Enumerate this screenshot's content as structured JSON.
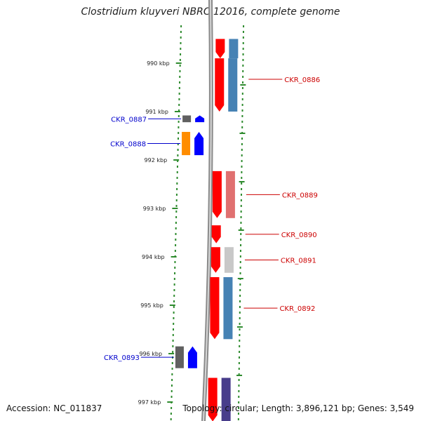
{
  "title": "Clostridium kluyveri NBRC 12016, complete genome",
  "footer": {
    "accession": "Accession: NC_011837",
    "summary": "Topology: circular; Length: 3,896,121 bp; Genes: 3,549"
  },
  "ticks": [
    {
      "label": "990 kbp",
      "kbp": 990
    },
    {
      "label": "991 kbp",
      "kbp": 991
    },
    {
      "label": "992 kbp",
      "kbp": 992
    },
    {
      "label": "993 kbp",
      "kbp": 993
    },
    {
      "label": "994 kbp",
      "kbp": 994
    },
    {
      "label": "995 kbp",
      "kbp": 995
    },
    {
      "label": "996 kbp",
      "kbp": 996
    },
    {
      "label": "997 kbp",
      "kbp": 997
    }
  ],
  "genes": [
    {
      "name": "",
      "strand": "+",
      "start_kbp": 989.5,
      "end_kbp": 989.9,
      "colors": [
        "#ff0000",
        "#4682b4"
      ],
      "labeled": false
    },
    {
      "name": "CKR_0886",
      "strand": "+",
      "start_kbp": 989.9,
      "end_kbp": 991.0,
      "colors": [
        "#ff0000",
        "#4682b4"
      ],
      "labeled": true,
      "label_color": "#cc0000"
    },
    {
      "name": "CKR_0887",
      "strand": "-",
      "start_kbp": 991.08,
      "end_kbp": 991.22,
      "colors": [
        "#606060",
        "#0000ff"
      ],
      "labeled": true,
      "label_color": "#0000cc"
    },
    {
      "name": "CKR_0888",
      "strand": "-",
      "start_kbp": 991.42,
      "end_kbp": 991.9,
      "colors": [
        "#ff8c00",
        "#0000ff"
      ],
      "labeled": true,
      "label_color": "#0000cc"
    },
    {
      "name": "CKR_0889",
      "strand": "+",
      "start_kbp": 992.23,
      "end_kbp": 993.2,
      "colors": [
        "#ff0000",
        "#e07070"
      ],
      "labeled": true,
      "label_color": "#cc0000"
    },
    {
      "name": "CKR_0890",
      "strand": "+",
      "start_kbp": 993.35,
      "end_kbp": 993.72,
      "colors": [
        "#ff0000"
      ],
      "labeled": true,
      "label_color": "#cc0000"
    },
    {
      "name": "CKR_0891",
      "strand": "+",
      "start_kbp": 993.8,
      "end_kbp": 994.33,
      "colors": [
        "#ff0000",
        "#c8c8c8"
      ],
      "labeled": true,
      "label_color": "#cc0000"
    },
    {
      "name": "CKR_0892",
      "strand": "+",
      "start_kbp": 994.42,
      "end_kbp": 995.7,
      "colors": [
        "#ff0000",
        "#4682b4"
      ],
      "labeled": true,
      "label_color": "#cc0000"
    },
    {
      "name": "CKR_0893",
      "strand": "-",
      "start_kbp": 995.85,
      "end_kbp": 996.3,
      "colors": [
        "#606060",
        "#0000ff"
      ],
      "labeled": true,
      "label_color": "#0000cc"
    },
    {
      "name": "",
      "strand": "+",
      "start_kbp": 996.5,
      "end_kbp": 997.4,
      "colors": [
        "#ff0000",
        "#483d8b"
      ],
      "labeled": false
    }
  ]
}
